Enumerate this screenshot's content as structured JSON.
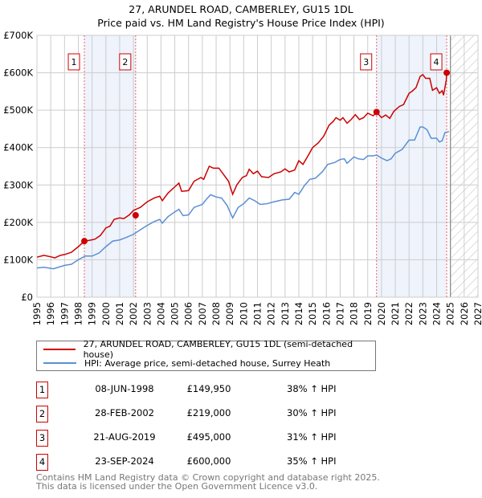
{
  "chart_data": {
    "type": "line",
    "title": "27, ARUNDEL ROAD, CAMBERLEY, GU15 1DL",
    "subtitle": "Price paid vs. HM Land Registry's House Price Index (HPI)",
    "xlim": [
      1995,
      2027
    ],
    "ylim": [
      0,
      700000
    ],
    "x_ticks": [
      "1995",
      "1996",
      "1997",
      "1998",
      "1999",
      "2000",
      "2001",
      "2002",
      "2003",
      "2004",
      "2005",
      "2006",
      "2007",
      "2008",
      "2009",
      "2010",
      "2011",
      "2012",
      "2013",
      "2014",
      "2015",
      "2016",
      "2017",
      "2018",
      "2019",
      "2020",
      "2021",
      "2022",
      "2023",
      "2024",
      "2025",
      "2026",
      "2027"
    ],
    "y_ticks": [
      {
        "v": 0,
        "label": "£0"
      },
      {
        "v": 100000,
        "label": "£100K"
      },
      {
        "v": 200000,
        "label": "£200K"
      },
      {
        "v": 300000,
        "label": "£300K"
      },
      {
        "v": 400000,
        "label": "£400K"
      },
      {
        "v": 500000,
        "label": "£500K"
      },
      {
        "v": 600000,
        "label": "£600K"
      },
      {
        "v": 700000,
        "label": "£700K"
      }
    ],
    "grid": true,
    "forecast_hatch_from": 2025.0,
    "shaded_periods": [
      [
        1998.44,
        2002.16
      ],
      [
        2019.64,
        2024.73
      ]
    ],
    "series": [
      {
        "name": "27, ARUNDEL ROAD, CAMBERLEY, GU15 1DL (semi-detached house)",
        "color": "#cc0000",
        "x": [
          1995,
          1995.5,
          1996,
          1996.3,
          1996.7,
          1997,
          1997.5,
          1998,
          1998.44,
          1998.8,
          1999.2,
          1999.6,
          2000,
          2000.3,
          2000.6,
          2001,
          2001.3,
          2001.7,
          2002,
          2002.5,
          2003,
          2003.5,
          2003.9,
          2004.1,
          2004.5,
          2005,
          2005.3,
          2005.5,
          2006,
          2006.4,
          2006.9,
          2007.1,
          2007.5,
          2007.8,
          2008.2,
          2008.5,
          2008.9,
          2009.2,
          2009.5,
          2009.9,
          2010.2,
          2010.4,
          2010.7,
          2011,
          2011.3,
          2011.8,
          2012.2,
          2012.7,
          2013,
          2013.3,
          2013.7,
          2014,
          2014.3,
          2014.7,
          2015,
          2015.4,
          2015.8,
          2016.2,
          2016.5,
          2016.7,
          2017,
          2017.2,
          2017.5,
          2017.8,
          2018.1,
          2018.4,
          2018.7,
          2019,
          2019.4,
          2019.64,
          2020,
          2020.3,
          2020.6,
          2020.9,
          2021.3,
          2021.6,
          2022,
          2022.2,
          2022.5,
          2022.8,
          2023,
          2023.2,
          2023.5,
          2023.7,
          2024,
          2024.2,
          2024.4,
          2024.5,
          2024.7,
          2024.73
        ],
        "y": [
          107,
          112,
          108,
          105,
          112,
          114,
          120,
          135,
          150,
          152,
          155,
          165,
          185,
          190,
          208,
          212,
          210,
          220,
          232,
          240,
          255,
          265,
          270,
          258,
          278,
          295,
          305,
          283,
          285,
          310,
          320,
          315,
          350,
          345,
          345,
          330,
          310,
          275,
          300,
          320,
          325,
          342,
          330,
          337,
          322,
          320,
          330,
          335,
          343,
          335,
          340,
          365,
          355,
          380,
          400,
          412,
          430,
          460,
          470,
          480,
          473,
          480,
          465,
          475,
          488,
          475,
          480,
          492,
          485,
          495,
          480,
          487,
          478,
          497,
          510,
          515,
          545,
          550,
          560,
          590,
          595,
          585,
          585,
          553,
          560,
          545,
          552,
          540,
          580,
          600
        ]
      },
      {
        "name": "HPI: Average price, semi-detached house, Surrey Heath",
        "color": "#5b8fd4",
        "x": [
          1995,
          1995.5,
          1996.2,
          1997,
          1997.5,
          1998,
          1998.5,
          1999,
          1999.5,
          2000,
          2000.5,
          2001,
          2001.5,
          2002,
          2002.5,
          2003,
          2003.5,
          2003.9,
          2004.1,
          2004.5,
          2005,
          2005.3,
          2005.6,
          2006,
          2006.4,
          2007,
          2007.3,
          2007.6,
          2008,
          2008.4,
          2008.8,
          2009.2,
          2009.6,
          2010,
          2010.4,
          2010.8,
          2011.2,
          2011.7,
          2012.2,
          2012.8,
          2013.3,
          2013.7,
          2014,
          2014.4,
          2014.8,
          2015.2,
          2015.7,
          2016.1,
          2016.6,
          2017,
          2017.3,
          2017.5,
          2018,
          2018.3,
          2018.7,
          2019,
          2019.4,
          2019.64,
          2020,
          2020.4,
          2020.7,
          2021,
          2021.5,
          2022,
          2022.4,
          2022.8,
          2023,
          2023.3,
          2023.6,
          2024,
          2024.2,
          2024.4,
          2024.6,
          2024.9
        ],
        "y": [
          78,
          80,
          76,
          85,
          88,
          100,
          110,
          110,
          118,
          135,
          150,
          153,
          160,
          168,
          180,
          192,
          202,
          208,
          198,
          215,
          228,
          235,
          218,
          220,
          240,
          248,
          262,
          274,
          268,
          265,
          245,
          212,
          240,
          250,
          265,
          258,
          248,
          250,
          255,
          260,
          262,
          280,
          275,
          298,
          315,
          318,
          335,
          355,
          360,
          368,
          370,
          358,
          375,
          370,
          368,
          378,
          378,
          380,
          372,
          365,
          370,
          385,
          395,
          420,
          420,
          455,
          455,
          448,
          425,
          425,
          415,
          418,
          440,
          443
        ]
      }
    ],
    "y_units": "thousands GBP",
    "sales": [
      {
        "n": "1",
        "x": 1998.44,
        "date": "08-JUN-1998",
        "price": "£149,950",
        "value": 149950,
        "hpi": "38% ↑ HPI"
      },
      {
        "n": "2",
        "x": 2002.16,
        "date": "28-FEB-2002",
        "price": "£219,000",
        "value": 219000,
        "hpi": "30% ↑ HPI"
      },
      {
        "n": "3",
        "x": 2019.64,
        "date": "21-AUG-2019",
        "price": "£495,000",
        "value": 495000,
        "hpi": "31% ↑ HPI"
      },
      {
        "n": "4",
        "x": 2024.73,
        "date": "23-SEP-2024",
        "price": "£600,000",
        "value": 600000,
        "hpi": "35% ↑ HPI"
      }
    ],
    "legend_position": "below"
  },
  "footer": {
    "line1": "Contains HM Land Registry data © Crown copyright and database right 2025.",
    "line2": "This data is licensed under the Open Government Licence v3.0."
  }
}
